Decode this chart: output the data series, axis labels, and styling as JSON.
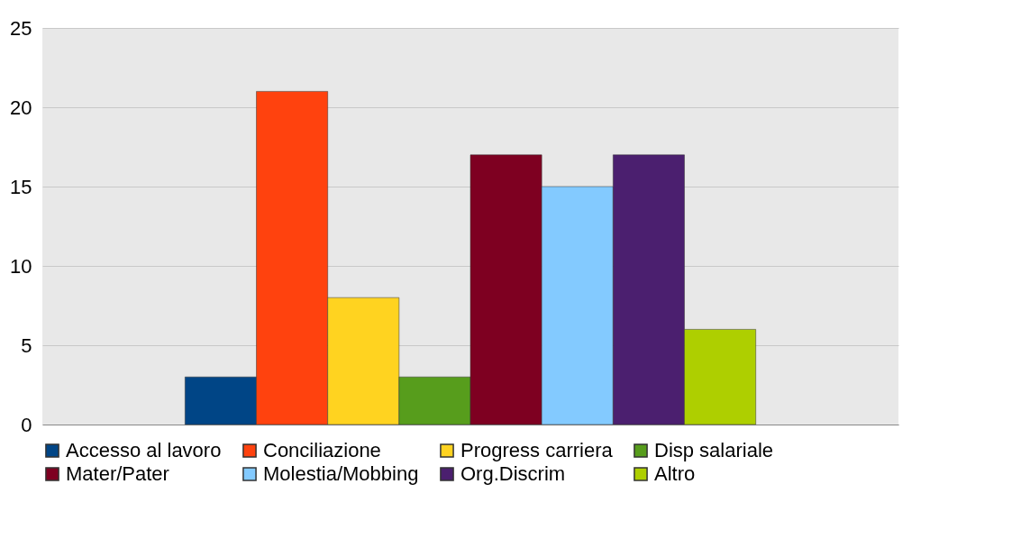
{
  "chart_data": {
    "type": "bar",
    "categories": [
      null
    ],
    "series": [
      {
        "name": "Accesso al lavoro",
        "color": "#004586",
        "values": [
          3
        ]
      },
      {
        "name": "Conciliazione",
        "color": "#ff420e",
        "values": [
          21
        ]
      },
      {
        "name": "Progress carriera",
        "color": "#ffd320",
        "values": [
          8
        ]
      },
      {
        "name": "Disp salariale",
        "color": "#579d1c",
        "values": [
          3
        ]
      },
      {
        "name": "Mater/Pater",
        "color": "#7e0021",
        "values": [
          17
        ]
      },
      {
        "name": "Molestia/Mobbing",
        "color": "#83caff",
        "values": [
          15
        ]
      },
      {
        "name": "Org.Discrim",
        "color": "#4b1f6f",
        "values": [
          17
        ]
      },
      {
        "name": "Altro",
        "color": "#aecf00",
        "values": [
          6
        ]
      }
    ],
    "ylim": [
      0,
      25
    ],
    "yticks": [
      0,
      5,
      10,
      15,
      20,
      25
    ],
    "grid": "y",
    "legend": "bottom",
    "tick_labels": "y"
  }
}
